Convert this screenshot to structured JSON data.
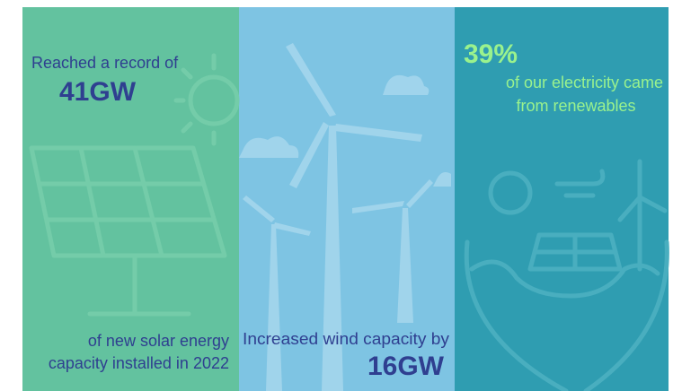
{
  "panels": [
    {
      "intro": "Reached a record of",
      "figure": "41GW",
      "caption": [
        "of new solar energy",
        "capacity installed in 2022"
      ]
    },
    {
      "caption": "Increased wind capacity by",
      "figure": "16GW"
    },
    {
      "figure": "39%",
      "caption": [
        "of our electricity came",
        "from renewables"
      ]
    }
  ]
}
